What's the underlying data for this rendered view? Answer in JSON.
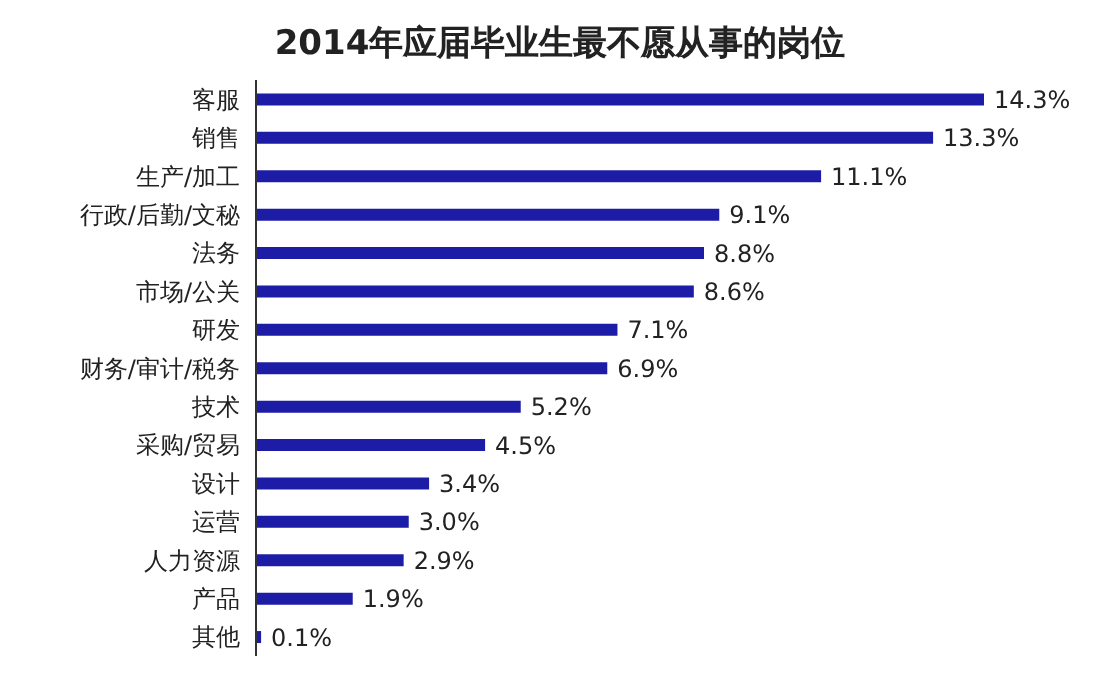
{
  "chart_data": {
    "type": "bar",
    "orientation": "horizontal",
    "title": "2014年应届毕业生最不愿从事的岗位",
    "categories": [
      "客服",
      "销售",
      "生产/加工",
      "行政/后勤/文秘",
      "法务",
      "市场/公关",
      "研发",
      "财务/审计/税务",
      "技术",
      "采购/贸易",
      "设计",
      "运营",
      "人力资源",
      "产品",
      "其他"
    ],
    "values": [
      14.3,
      13.3,
      11.1,
      9.1,
      8.8,
      8.6,
      7.1,
      6.9,
      5.2,
      4.5,
      3.4,
      3.0,
      2.9,
      1.9,
      0.1
    ],
    "value_labels": [
      "14.3%",
      "13.3%",
      "11.1%",
      "9.1%",
      "8.8%",
      "8.6%",
      "7.1%",
      "6.9%",
      "5.2%",
      "4.5%",
      "3.4%",
      "3.0%",
      "2.9%",
      "1.9%",
      "0.1%"
    ],
    "color": "#1c1ca6",
    "grid": false,
    "legend": false
  }
}
